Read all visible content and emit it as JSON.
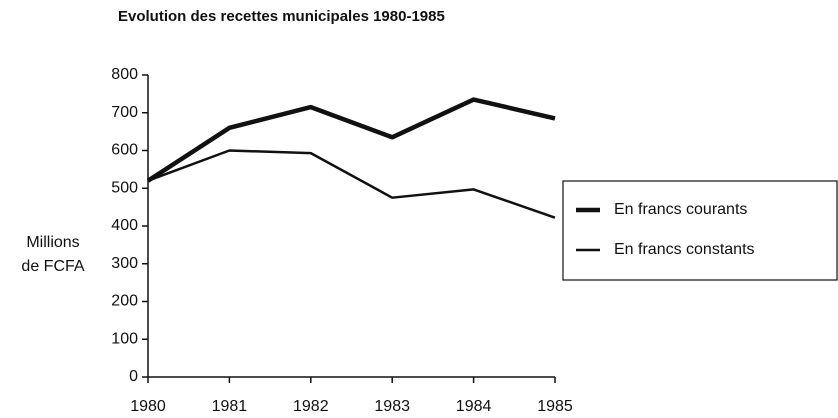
{
  "chart_data": {
    "type": "line",
    "title": "Evolution des recettes municipales 1980-1985",
    "ylabel": [
      "Millions",
      "de FCFA"
    ],
    "x": [
      1980,
      1981,
      1982,
      1983,
      1984,
      1985
    ],
    "xlim": [
      1980,
      1985
    ],
    "xticks": [
      1980,
      1981,
      1982,
      1983,
      1984,
      1985
    ],
    "ylim": [
      0,
      800
    ],
    "yticks": [
      0,
      100,
      200,
      300,
      400,
      500,
      600,
      700,
      800
    ],
    "grid": false,
    "legend": "right",
    "series": [
      {
        "name": "En francs courants",
        "color": "#111111",
        "width": 4.5,
        "values": [
          520,
          660,
          715,
          635,
          735,
          685
        ]
      },
      {
        "name": "En francs constants",
        "color": "#111111",
        "width": 2.5,
        "values": [
          520,
          600,
          593,
          475,
          497,
          422
        ]
      }
    ]
  }
}
